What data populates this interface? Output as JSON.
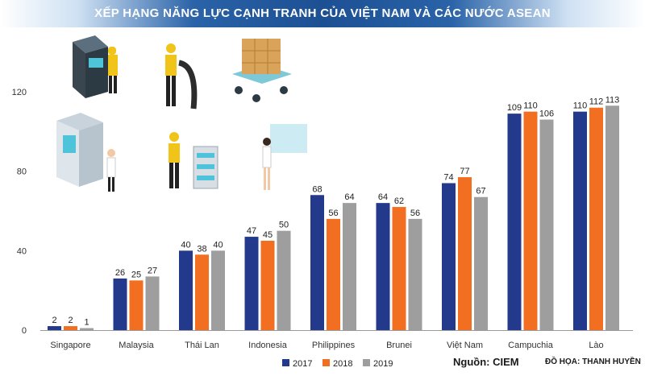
{
  "title": "XẾP HẠNG NĂNG LỰC CẠNH TRANH CỦA VIỆT NAM VÀ CÁC NƯỚC ASEAN",
  "source": "Nguồn: CIEM",
  "credit": "ĐỒ HỌA: THANH HUYỀN",
  "chart_data": {
    "type": "bar",
    "categories": [
      "Singapore",
      "Malaysia",
      "Thái Lan",
      "Indonesia",
      "Philippines",
      "Brunei",
      "Việt Nam",
      "Campuchia",
      "Lào"
    ],
    "series": [
      {
        "name": "2017",
        "color": "#233a8c",
        "values": [
          2,
          26,
          40,
          47,
          68,
          64,
          74,
          109,
          110
        ]
      },
      {
        "name": "2018",
        "color": "#f26f21",
        "values": [
          2,
          25,
          38,
          45,
          56,
          62,
          77,
          110,
          112
        ]
      },
      {
        "name": "2019",
        "color": "#9e9e9e",
        "values": [
          1,
          27,
          40,
          50,
          64,
          56,
          67,
          106,
          113
        ]
      }
    ],
    "yticks": [
      0,
      40,
      80,
      120
    ],
    "ylim": [
      0,
      120
    ],
    "legend_position": "bottom-center",
    "grid": false
  }
}
